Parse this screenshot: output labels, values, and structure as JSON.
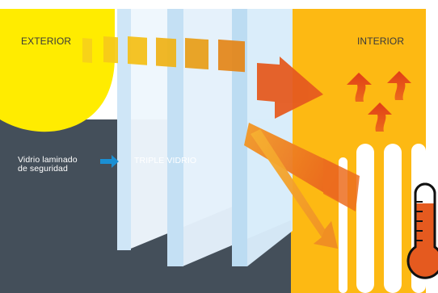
{
  "labels": {
    "exterior": "EXTERIOR",
    "interior": "INTERIOR",
    "laminated_line1": "Vidrio laminado",
    "laminated_line2": "de seguridad",
    "triple": "TRIPLE VIDRIO"
  },
  "icons": [
    "sun-shape",
    "heat-arrows-icon",
    "radiator-icon",
    "thermometer-icon",
    "pointer-arrow-icon"
  ],
  "colors": {
    "exterior_yellow": "#ffec00",
    "exterior_dark": "#444f5a",
    "interior_orange": "#fdb913",
    "glass": "#e6f2fb",
    "heat_red": "#e55a1f",
    "pointer_blue": "#1a8fd3"
  }
}
